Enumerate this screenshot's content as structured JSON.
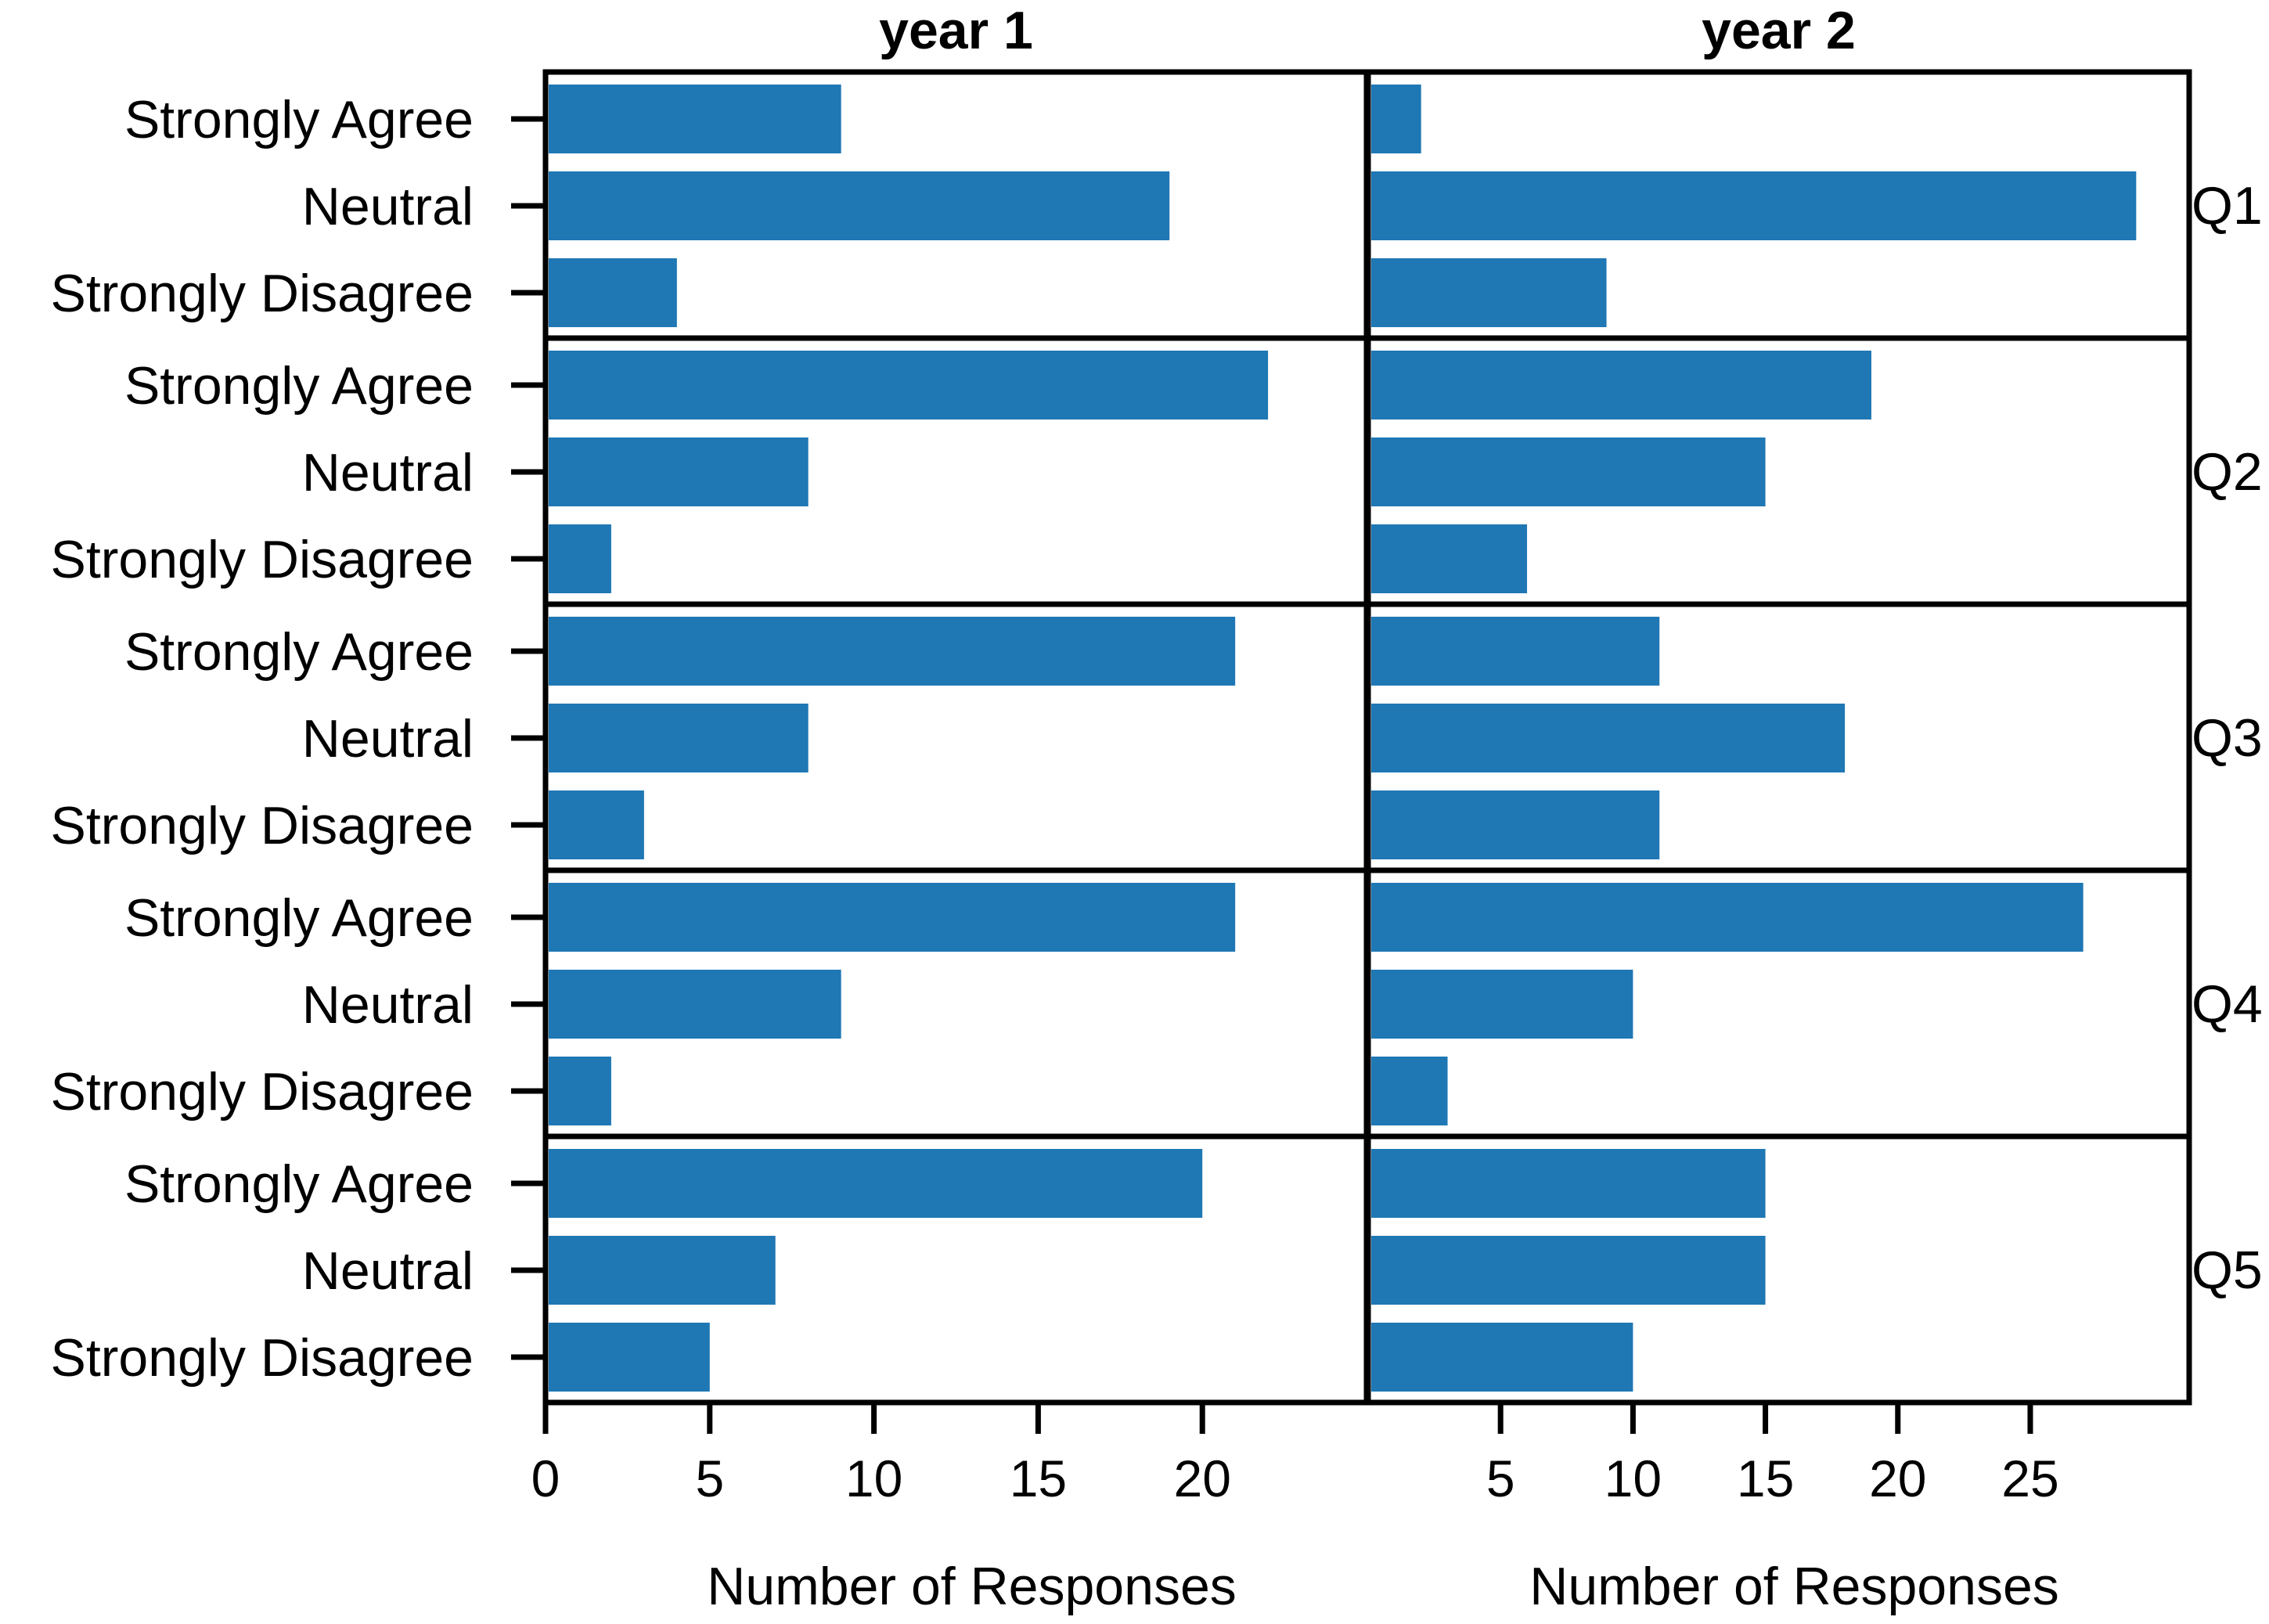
{
  "chart_data": {
    "type": "bar",
    "orientation": "horizontal",
    "bar_color": "#1f77b4",
    "grid": false,
    "columns": [
      {
        "title": "year 1",
        "xlabel": "Number of Responses",
        "xticks": [
          0,
          5,
          10,
          15,
          20
        ],
        "xlim": [
          0,
          25
        ]
      },
      {
        "title": "year 2",
        "xlabel": "Number of Responses",
        "xticks": [
          5,
          10,
          15,
          20,
          25
        ],
        "xlim": [
          0,
          31
        ]
      }
    ],
    "categories": [
      "Strongly Agree",
      "Neutral",
      "Strongly Disagree"
    ],
    "rows": [
      {
        "label": "Q1",
        "values": {
          "year 1": [
            9,
            19,
            4
          ],
          "year 2": [
            2,
            29,
            9
          ]
        }
      },
      {
        "label": "Q2",
        "values": {
          "year 1": [
            22,
            8,
            2
          ],
          "year 2": [
            19,
            15,
            6
          ]
        }
      },
      {
        "label": "Q3",
        "values": {
          "year 1": [
            21,
            8,
            3
          ],
          "year 2": [
            11,
            18,
            11
          ]
        }
      },
      {
        "label": "Q4",
        "values": {
          "year 1": [
            21,
            9,
            2
          ],
          "year 2": [
            27,
            10,
            3
          ]
        }
      },
      {
        "label": "Q5",
        "values": {
          "year 1": [
            20,
            7,
            5
          ],
          "year 2": [
            15,
            15,
            10
          ]
        }
      }
    ]
  }
}
